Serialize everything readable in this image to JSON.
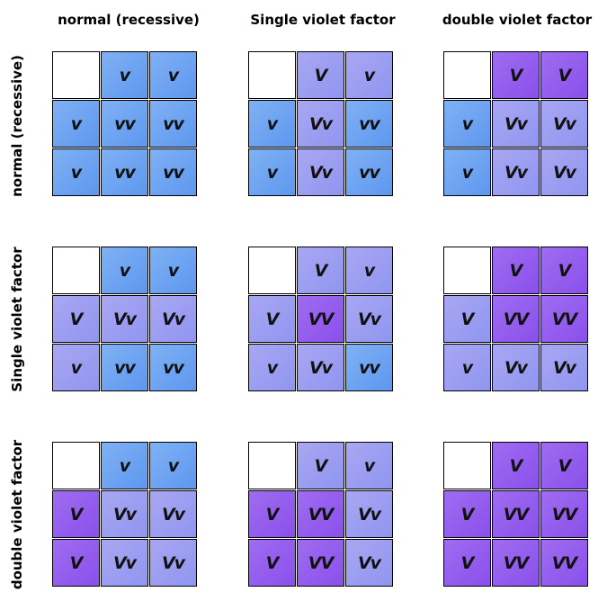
{
  "column_headers": [
    "normal (recessive)",
    "Single violet factor",
    "double violet factor"
  ],
  "row_headers": [
    "normal (recessive)",
    "Single violet factor",
    "double violet factor"
  ],
  "colors": {
    "blue": "#6fa3f2",
    "light_violet": "#9a9ef1",
    "violet": "#9560ee"
  },
  "grids": [
    [
      {
        "cells": [
          {
            "label": "",
            "color": "empty"
          },
          {
            "label": "v",
            "color": "blue"
          },
          {
            "label": "v",
            "color": "blue"
          },
          {
            "label": "v",
            "color": "blue"
          },
          {
            "label": "vv",
            "color": "blue"
          },
          {
            "label": "vv",
            "color": "blue"
          },
          {
            "label": "v",
            "color": "blue"
          },
          {
            "label": "vv",
            "color": "blue"
          },
          {
            "label": "vv",
            "color": "blue"
          }
        ]
      },
      {
        "cells": [
          {
            "label": "",
            "color": "empty"
          },
          {
            "label": "V",
            "color": "light"
          },
          {
            "label": "v",
            "color": "light"
          },
          {
            "label": "v",
            "color": "blue"
          },
          {
            "label": "Vv",
            "color": "light"
          },
          {
            "label": "vv",
            "color": "blue"
          },
          {
            "label": "v",
            "color": "blue"
          },
          {
            "label": "Vv",
            "color": "light"
          },
          {
            "label": "vv",
            "color": "blue"
          }
        ]
      },
      {
        "cells": [
          {
            "label": "",
            "color": "empty"
          },
          {
            "label": "V",
            "color": "violet"
          },
          {
            "label": "V",
            "color": "violet"
          },
          {
            "label": "v",
            "color": "blue"
          },
          {
            "label": "Vv",
            "color": "light"
          },
          {
            "label": "Vv",
            "color": "light"
          },
          {
            "label": "v",
            "color": "blue"
          },
          {
            "label": "Vv",
            "color": "light"
          },
          {
            "label": "Vv",
            "color": "light"
          }
        ]
      }
    ],
    [
      {
        "cells": [
          {
            "label": "",
            "color": "empty"
          },
          {
            "label": "v",
            "color": "blue"
          },
          {
            "label": "v",
            "color": "blue"
          },
          {
            "label": "V",
            "color": "light"
          },
          {
            "label": "Vv",
            "color": "light"
          },
          {
            "label": "Vv",
            "color": "light"
          },
          {
            "label": "v",
            "color": "light"
          },
          {
            "label": "vv",
            "color": "blue"
          },
          {
            "label": "vv",
            "color": "blue"
          }
        ]
      },
      {
        "cells": [
          {
            "label": "",
            "color": "empty"
          },
          {
            "label": "V",
            "color": "light"
          },
          {
            "label": "v",
            "color": "light"
          },
          {
            "label": "V",
            "color": "light"
          },
          {
            "label": "VV",
            "color": "violet"
          },
          {
            "label": "Vv",
            "color": "light"
          },
          {
            "label": "v",
            "color": "light"
          },
          {
            "label": "Vv",
            "color": "light"
          },
          {
            "label": "vv",
            "color": "blue"
          }
        ]
      },
      {
        "cells": [
          {
            "label": "",
            "color": "empty"
          },
          {
            "label": "V",
            "color": "violet"
          },
          {
            "label": "V",
            "color": "violet"
          },
          {
            "label": "V",
            "color": "light"
          },
          {
            "label": "VV",
            "color": "violet"
          },
          {
            "label": "VV",
            "color": "violet"
          },
          {
            "label": "v",
            "color": "light"
          },
          {
            "label": "Vv",
            "color": "light"
          },
          {
            "label": "Vv",
            "color": "light"
          }
        ]
      }
    ],
    [
      {
        "cells": [
          {
            "label": "",
            "color": "empty"
          },
          {
            "label": "v",
            "color": "blue"
          },
          {
            "label": "v",
            "color": "blue"
          },
          {
            "label": "V",
            "color": "violet"
          },
          {
            "label": "Vv",
            "color": "light"
          },
          {
            "label": "Vv",
            "color": "light"
          },
          {
            "label": "V",
            "color": "violet"
          },
          {
            "label": "Vv",
            "color": "light"
          },
          {
            "label": "Vv",
            "color": "light"
          }
        ]
      },
      {
        "cells": [
          {
            "label": "",
            "color": "empty"
          },
          {
            "label": "V",
            "color": "light"
          },
          {
            "label": "v",
            "color": "light"
          },
          {
            "label": "V",
            "color": "violet"
          },
          {
            "label": "VV",
            "color": "violet"
          },
          {
            "label": "Vv",
            "color": "light"
          },
          {
            "label": "V",
            "color": "violet"
          },
          {
            "label": "VV",
            "color": "violet"
          },
          {
            "label": "Vv",
            "color": "light"
          }
        ]
      },
      {
        "cells": [
          {
            "label": "",
            "color": "empty"
          },
          {
            "label": "V",
            "color": "violet"
          },
          {
            "label": "V",
            "color": "violet"
          },
          {
            "label": "V",
            "color": "violet"
          },
          {
            "label": "VV",
            "color": "violet"
          },
          {
            "label": "VV",
            "color": "violet"
          },
          {
            "label": "V",
            "color": "violet"
          },
          {
            "label": "VV",
            "color": "violet"
          },
          {
            "label": "VV",
            "color": "violet"
          }
        ]
      }
    ]
  ]
}
